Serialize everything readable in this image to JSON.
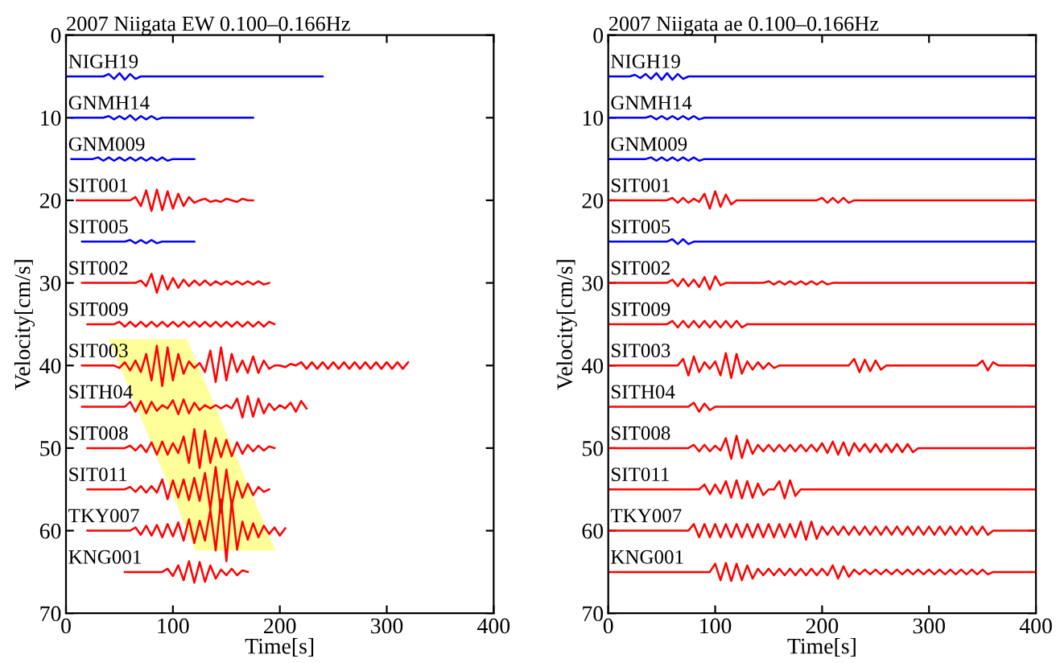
{
  "chart_data": [
    {
      "type": "line",
      "title": "2007 Niigata EW 0.100–0.166Hz",
      "xlabel": "Time[s]",
      "ylabel": "Velocity[cm/s]",
      "xlim": [
        0,
        400
      ],
      "xticks": [
        0,
        100,
        200,
        300,
        400
      ],
      "ylim": [
        70,
        0
      ],
      "yticks": [
        0,
        10,
        20,
        30,
        40,
        50,
        60,
        70
      ],
      "grid": false,
      "legend": false,
      "x": [
        0,
        5,
        10,
        15,
        20,
        25,
        30,
        35,
        40,
        45,
        50,
        55,
        60,
        65,
        70,
        75,
        80,
        85,
        90,
        95,
        100,
        105,
        110,
        115,
        120,
        125,
        130,
        135,
        140,
        145,
        150,
        155,
        160,
        165,
        170,
        175,
        180,
        185,
        190,
        195,
        200,
        205,
        210,
        215,
        220,
        225,
        230,
        235,
        240,
        245,
        250,
        255,
        260,
        265,
        270,
        275,
        280,
        285,
        290,
        295,
        300,
        305,
        310,
        315,
        320
      ],
      "series": [
        {
          "type": "area",
          "color": "#ffff80",
          "x": [
            40,
            113,
            196,
            121
          ],
          "values": [
            36.8,
            36.8,
            62.4,
            62.4
          ]
        },
        {
          "name": "NIGH19",
          "color": "#0000ff",
          "values": [
            5,
            5,
            5,
            5,
            5,
            5,
            5,
            5,
            4.7,
            5.3,
            4.6,
            5.4,
            4.7,
            5.3,
            5,
            5,
            5,
            5,
            5,
            5,
            5,
            5,
            5,
            5,
            5,
            5,
            5,
            5,
            5,
            5,
            5,
            5,
            5,
            5,
            5,
            5,
            5,
            5,
            5,
            5,
            5,
            5,
            5,
            5,
            5,
            5,
            5,
            5,
            5,
            null,
            null,
            null,
            null,
            null,
            null,
            null,
            null,
            null,
            null,
            null,
            null,
            null,
            null,
            null,
            null
          ]
        },
        {
          "name": "GNMH14",
          "color": "#0000ff",
          "values": [
            null,
            10,
            10,
            10,
            10,
            10,
            10,
            10,
            9.8,
            10.2,
            9.8,
            10.2,
            9.7,
            10.3,
            9.8,
            10.2,
            9.8,
            10.2,
            10,
            10,
            10,
            10,
            10,
            10,
            10,
            10,
            10,
            10,
            10,
            10,
            10,
            10,
            10,
            10,
            10,
            10,
            null,
            null,
            null,
            null,
            null,
            null,
            null,
            null,
            null,
            null,
            null,
            null,
            null,
            null,
            null,
            null,
            null,
            null,
            null,
            null,
            null,
            null,
            null,
            null,
            null,
            null,
            null,
            null,
            null
          ]
        },
        {
          "name": "GNM009",
          "color": "#0000ff",
          "values": [
            null,
            15,
            15,
            15,
            15,
            15,
            14.8,
            15.2,
            14.8,
            15.2,
            14.8,
            15.2,
            14.8,
            15.2,
            14.8,
            15.2,
            14.8,
            15.2,
            14.8,
            15.2,
            15,
            15,
            15,
            15,
            15,
            null,
            null,
            null,
            null,
            null,
            null,
            null,
            null,
            null,
            null,
            null,
            null,
            null,
            null,
            null,
            null,
            null,
            null,
            null,
            null,
            null,
            null,
            null,
            null,
            null,
            null,
            null,
            null,
            null,
            null,
            null,
            null,
            null,
            null,
            null,
            null,
            null,
            null,
            null,
            null
          ]
        },
        {
          "name": "SIT001",
          "color": "#ff0000",
          "values": [
            null,
            null,
            20,
            20,
            20,
            20,
            20,
            20,
            20,
            20,
            20,
            20,
            20,
            19.6,
            20.7,
            18.8,
            21.3,
            18.7,
            21.2,
            18.9,
            21,
            19.2,
            20.7,
            19.6,
            20.3,
            20,
            19.8,
            20.2,
            20,
            20.2,
            19.8,
            20,
            20.2,
            19.8,
            20,
            20,
            null,
            null,
            null,
            null,
            null,
            null,
            null,
            null,
            null,
            null,
            null,
            null,
            null,
            null,
            null,
            null,
            null,
            null,
            null,
            null,
            null,
            null,
            null,
            null,
            null,
            null,
            null,
            null,
            null
          ]
        },
        {
          "name": "SIT005",
          "color": "#0000ff",
          "values": [
            null,
            null,
            null,
            25,
            25,
            25,
            25,
            25,
            25,
            25,
            25,
            25,
            24.8,
            25.2,
            24.8,
            25.2,
            24.8,
            25.2,
            25,
            25,
            25,
            25,
            25,
            25,
            25,
            null,
            null,
            null,
            null,
            null,
            null,
            null,
            null,
            null,
            null,
            null,
            null,
            null,
            null,
            null,
            null,
            null,
            null,
            null,
            null,
            null,
            null,
            null,
            null,
            null,
            null,
            null,
            null,
            null,
            null,
            null,
            null,
            null,
            null,
            null,
            null,
            null,
            null,
            null,
            null
          ]
        },
        {
          "name": "SIT002",
          "color": "#ff0000",
          "values": [
            null,
            null,
            null,
            30,
            30,
            30,
            30,
            30,
            30,
            30,
            30,
            30,
            30,
            30,
            29.7,
            30.4,
            28.9,
            31.2,
            29.1,
            30.8,
            29.4,
            30.6,
            29.6,
            30.4,
            29.7,
            30.3,
            29.7,
            30.3,
            29.8,
            30.2,
            29.8,
            30.2,
            29.8,
            30.2,
            29.8,
            30.2,
            29.8,
            30.2,
            30,
            null,
            null,
            null,
            null,
            null,
            null,
            null,
            null,
            null,
            null,
            null,
            null,
            null,
            null,
            null,
            null,
            null,
            null,
            null,
            null,
            null,
            null,
            null,
            null,
            null,
            null
          ]
        },
        {
          "name": "SIT009",
          "color": "#ff0000",
          "values": [
            null,
            null,
            null,
            null,
            35,
            35,
            35,
            35,
            35,
            35,
            34.7,
            35.3,
            34.7,
            35.3,
            34.7,
            35.3,
            34.7,
            35.3,
            34.7,
            35.3,
            34.7,
            35.3,
            34.7,
            35.3,
            34.7,
            35.3,
            34.7,
            35.3,
            34.7,
            35.3,
            34.7,
            35.3,
            34.7,
            35.3,
            34.7,
            35.3,
            34.7,
            35.3,
            34.7,
            35,
            null,
            null,
            null,
            null,
            null,
            null,
            null,
            null,
            null,
            null,
            null,
            null,
            null,
            null,
            null,
            null,
            null,
            null,
            null,
            null,
            null,
            null,
            null,
            null,
            null
          ]
        },
        {
          "name": "SIT003",
          "color": "#ff0000",
          "values": [
            null,
            null,
            null,
            40,
            40,
            40,
            40,
            40,
            40,
            40,
            40.3,
            39.6,
            40.6,
            39.4,
            40.8,
            38.6,
            41.8,
            37.6,
            42.5,
            37.8,
            41.8,
            38.6,
            41,
            39.5,
            40.3,
            39.7,
            40.8,
            38.2,
            42,
            37.8,
            41.8,
            38.6,
            40.8,
            39.4,
            40.9,
            38.9,
            40.9,
            39.4,
            40.4,
            40,
            40,
            40.2,
            39.8,
            40,
            39.6,
            40.4,
            39.6,
            40.4,
            39.6,
            40.4,
            39.6,
            40.4,
            39.6,
            40.4,
            39.6,
            40.4,
            39.6,
            40.4,
            39.6,
            40.4,
            39.6,
            40.4,
            39.6,
            40.4,
            39.6
          ]
        },
        {
          "name": "SITH04",
          "color": "#ff0000",
          "values": [
            null,
            null,
            null,
            45,
            45,
            45,
            45,
            45,
            45,
            45,
            45,
            45,
            44.4,
            45.6,
            44.3,
            45.8,
            44.4,
            45.5,
            44.8,
            45.2,
            44.2,
            45.9,
            44.1,
            45.8,
            44.5,
            45.4,
            44.8,
            45.2,
            44.8,
            45.2,
            44.8,
            45.2,
            44,
            46.3,
            43.7,
            46.2,
            44,
            45.8,
            44.6,
            45.4,
            44.8,
            45.2,
            44.5,
            45.6,
            44.3,
            45.2,
            null,
            null,
            null,
            null,
            null,
            null,
            null,
            null,
            null,
            null,
            null,
            null,
            null,
            null,
            null,
            null,
            null,
            null,
            null
          ]
        },
        {
          "name": "SIT008",
          "color": "#ff0000",
          "values": [
            null,
            null,
            null,
            null,
            50,
            50,
            50,
            50,
            50,
            50,
            50,
            50,
            49.7,
            50.3,
            49.6,
            50.5,
            49.3,
            50.8,
            49.2,
            50.8,
            49.4,
            50.6,
            48.6,
            51.8,
            47.7,
            52.4,
            47.9,
            51.8,
            48.8,
            51.1,
            49,
            51,
            49.3,
            50.7,
            49.6,
            50.4,
            49.7,
            50.3,
            49.8,
            50,
            null,
            null,
            null,
            null,
            null,
            null,
            null,
            null,
            null,
            null,
            null,
            null,
            null,
            null,
            null,
            null,
            null,
            null,
            null,
            null,
            null,
            null,
            null,
            null,
            null
          ]
        },
        {
          "name": "SIT011",
          "color": "#ff0000",
          "values": [
            null,
            null,
            null,
            null,
            55,
            55,
            55,
            55,
            55,
            55,
            55,
            55,
            54.7,
            55.3,
            54.6,
            55.4,
            54.6,
            55.4,
            53.8,
            56.2,
            53.9,
            56,
            53.8,
            56.3,
            53.6,
            56.4,
            53,
            57.4,
            52.3,
            57.8,
            52.6,
            57,
            54,
            56,
            54.3,
            55.7,
            54.7,
            55.3,
            55,
            null,
            null,
            null,
            null,
            null,
            null,
            null,
            null,
            null,
            null,
            null,
            null,
            null,
            null,
            null,
            null,
            null,
            null,
            null,
            null,
            null,
            null,
            null,
            null,
            null,
            null
          ]
        },
        {
          "name": "TKY007",
          "color": "#ff0000",
          "values": [
            null,
            null,
            null,
            null,
            60,
            60,
            60,
            60,
            60,
            60,
            60,
            60,
            60,
            59.6,
            60.5,
            59.4,
            60.6,
            59.3,
            60.8,
            59.2,
            60.7,
            59,
            61.2,
            58.6,
            61.5,
            58.8,
            61.2,
            57.5,
            62.4,
            56.2,
            63.7,
            56.4,
            62.3,
            58.9,
            61.1,
            59.1,
            60.8,
            59.4,
            60.4,
            59.6,
            60.6,
            59.7,
            null,
            null,
            null,
            null,
            null,
            null,
            null,
            null,
            null,
            null,
            null,
            null,
            null,
            null,
            null,
            null,
            null,
            null,
            null,
            null,
            null,
            null,
            null
          ]
        },
        {
          "name": "KNG001",
          "color": "#ff0000",
          "values": [
            null,
            null,
            null,
            null,
            null,
            null,
            null,
            null,
            null,
            null,
            null,
            65,
            65,
            65,
            65,
            65,
            65,
            65,
            65,
            64.6,
            65.5,
            64.2,
            66,
            63.7,
            66.3,
            63.8,
            66.2,
            64.2,
            65.8,
            64.7,
            65.4,
            64.6,
            65.4,
            64.8,
            65,
            null,
            null,
            null,
            null,
            null,
            null,
            null,
            null,
            null,
            null,
            null,
            null,
            null,
            null,
            null,
            null,
            null,
            null,
            null,
            null,
            null,
            null,
            null,
            null,
            null,
            null,
            null,
            null,
            null,
            null
          ]
        }
      ]
    },
    {
      "type": "line",
      "title": "2007 Niigata ae 0.100–0.166Hz",
      "xlabel": "Time[s]",
      "ylabel": "Velocity[cm/s]",
      "xlim": [
        0,
        400
      ],
      "xticks": [
        0,
        100,
        200,
        300,
        400
      ],
      "ylim": [
        70,
        0
      ],
      "yticks": [
        0,
        10,
        20,
        30,
        40,
        50,
        60,
        70
      ],
      "grid": false,
      "legend": false,
      "x": [
        0,
        5,
        10,
        15,
        20,
        25,
        30,
        35,
        40,
        45,
        50,
        55,
        60,
        65,
        70,
        75,
        80,
        85,
        90,
        95,
        100,
        105,
        110,
        115,
        120,
        125,
        130,
        135,
        140,
        145,
        150,
        155,
        160,
        165,
        170,
        175,
        180,
        185,
        190,
        195,
        200,
        205,
        210,
        215,
        220,
        225,
        230,
        235,
        240,
        245,
        250,
        255,
        260,
        265,
        270,
        275,
        280,
        285,
        290,
        295,
        300,
        305,
        310,
        315,
        320,
        325,
        330,
        335,
        340,
        345,
        350,
        355,
        360,
        365,
        370,
        375,
        380,
        385,
        390,
        395,
        400
      ],
      "series": [
        {
          "name": "NIGH19",
          "color": "#0000ff",
          "values": [
            5,
            5,
            5,
            5,
            5,
            4.8,
            5.2,
            4.7,
            5.3,
            4.6,
            5.4,
            4.6,
            5.4,
            4.7,
            5.3,
            5,
            5,
            5,
            5,
            5,
            5,
            5,
            5,
            5,
            5,
            5,
            5,
            5,
            5,
            5,
            5,
            5,
            5,
            5,
            5,
            5,
            5,
            5,
            5,
            5,
            5,
            5,
            5,
            5,
            5,
            5,
            5,
            5,
            5,
            5,
            5,
            5,
            5,
            5,
            5,
            5,
            5,
            5,
            5,
            5,
            5,
            5,
            5,
            5,
            5,
            5,
            5,
            5,
            5,
            5,
            5,
            5,
            5,
            5,
            5,
            5,
            5,
            5,
            5,
            5,
            5
          ]
        },
        {
          "name": "GNMH14",
          "color": "#0000ff",
          "values": [
            10,
            10,
            10,
            10,
            10,
            10,
            10,
            10,
            9.8,
            10.2,
            9.8,
            10.2,
            9.8,
            10.2,
            9.8,
            10.2,
            9.8,
            10.2,
            10,
            10,
            10,
            10,
            10,
            10,
            10,
            10,
            10,
            10,
            10,
            10,
            10,
            10,
            10,
            10,
            10,
            10,
            10,
            10,
            10,
            10,
            10,
            10,
            10,
            10,
            10,
            10,
            10,
            10,
            10,
            10,
            10,
            10,
            10,
            10,
            10,
            10,
            10,
            10,
            10,
            10,
            10,
            10,
            10,
            10,
            10,
            10,
            10,
            10,
            10,
            10,
            10,
            10,
            10,
            10,
            10,
            10,
            10,
            10,
            10,
            10,
            10
          ]
        },
        {
          "name": "GNM009",
          "color": "#0000ff",
          "values": [
            15,
            15,
            15,
            15,
            15,
            15,
            15,
            15,
            14.8,
            15.2,
            14.8,
            15.2,
            14.8,
            15.2,
            14.8,
            15.2,
            14.8,
            15.2,
            15,
            15,
            15,
            15,
            15,
            15,
            15,
            15,
            15,
            15,
            15,
            15,
            15,
            15,
            15,
            15,
            15,
            15,
            15,
            15,
            15,
            15,
            15,
            15,
            15,
            15,
            15,
            15,
            15,
            15,
            15,
            15,
            15,
            15,
            15,
            15,
            15,
            15,
            15,
            15,
            15,
            15,
            15,
            15,
            15,
            15,
            15,
            15,
            15,
            15,
            15,
            15,
            15,
            15,
            15,
            15,
            15,
            15,
            15,
            15,
            15,
            15,
            15
          ]
        },
        {
          "name": "SIT001",
          "color": "#ff0000",
          "values": [
            20,
            20,
            20,
            20,
            20,
            20,
            20,
            20,
            20,
            20,
            20,
            20,
            19.7,
            20.3,
            19.7,
            20.3,
            19.8,
            20.2,
            19.2,
            21,
            18.9,
            20.8,
            19.3,
            20.5,
            20,
            20,
            20,
            20,
            20,
            20,
            20,
            20,
            20,
            20,
            20,
            20,
            20,
            20,
            20,
            20,
            19.7,
            20.3,
            19.7,
            20.3,
            19.7,
            20.3,
            20,
            20,
            20,
            20,
            20,
            20,
            20,
            20,
            20,
            20,
            20,
            20,
            20,
            20,
            20,
            20,
            20,
            20,
            20,
            20,
            20,
            20,
            20,
            20,
            20,
            20,
            20,
            20,
            20,
            20,
            20,
            20,
            20,
            20,
            20
          ]
        },
        {
          "name": "SIT005",
          "color": "#0000ff",
          "values": [
            25,
            25,
            25,
            25,
            25,
            25,
            25,
            25,
            25,
            25,
            25,
            25,
            24.7,
            25.3,
            24.7,
            25.3,
            25,
            25,
            25,
            25,
            25,
            25,
            25,
            25,
            25,
            25,
            25,
            25,
            25,
            25,
            25,
            25,
            25,
            25,
            25,
            25,
            25,
            25,
            25,
            25,
            25,
            25,
            25,
            25,
            25,
            25,
            25,
            25,
            25,
            25,
            25,
            25,
            25,
            25,
            25,
            25,
            25,
            25,
            25,
            25,
            25,
            25,
            25,
            25,
            25,
            25,
            25,
            25,
            25,
            25,
            25,
            25,
            25,
            25,
            25,
            25,
            25,
            25,
            25,
            25,
            25
          ]
        },
        {
          "name": "SIT002",
          "color": "#ff0000",
          "values": [
            30,
            30,
            30,
            30,
            30,
            30,
            30,
            30,
            30,
            30,
            30,
            30,
            29.6,
            30.4,
            29.5,
            30.4,
            29.6,
            30.5,
            29.3,
            30.8,
            29.2,
            30.3,
            30,
            30,
            30,
            30,
            30,
            30,
            30,
            30,
            29.8,
            30.2,
            29.8,
            30.2,
            29.8,
            30.2,
            29.8,
            30.2,
            29.8,
            30.2,
            29.8,
            30.2,
            30,
            30,
            30,
            30,
            30,
            30,
            30,
            30,
            30,
            30,
            30,
            30,
            30,
            30,
            30,
            30,
            30,
            30,
            30,
            30,
            30,
            30,
            30,
            30,
            30,
            30,
            30,
            30,
            30,
            30,
            30,
            30,
            30,
            30,
            30,
            30,
            30,
            30,
            30
          ]
        },
        {
          "name": "SIT009",
          "color": "#ff0000",
          "values": [
            35,
            35,
            35,
            35,
            35,
            35,
            35,
            35,
            35,
            35,
            35,
            35,
            34.6,
            35.4,
            34.6,
            35.4,
            34.6,
            35.4,
            34.6,
            35.4,
            34.6,
            35.4,
            34.6,
            35.4,
            34.6,
            35.4,
            35,
            35,
            35,
            35,
            35,
            35,
            35,
            35,
            35,
            35,
            35,
            35,
            35,
            35,
            35,
            35,
            35,
            35,
            35,
            35,
            35,
            35,
            35,
            35,
            35,
            35,
            35,
            35,
            35,
            35,
            35,
            35,
            35,
            35,
            35,
            35,
            35,
            35,
            35,
            35,
            35,
            35,
            35,
            35,
            35,
            35,
            35,
            35,
            35,
            35,
            35,
            35,
            35,
            35,
            35
          ]
        },
        {
          "name": "SIT003",
          "color": "#ff0000",
          "values": [
            40,
            40,
            40,
            40,
            40,
            40,
            40,
            40,
            40,
            40,
            40,
            40,
            40,
            40,
            39.2,
            41.2,
            38.9,
            40.8,
            39.6,
            40.4,
            39.5,
            41.2,
            38.5,
            41.5,
            38.6,
            41,
            39.5,
            40.5,
            39.6,
            40.4,
            39.7,
            40.3,
            40,
            40,
            40,
            40,
            40,
            40,
            40,
            40,
            40,
            40,
            40,
            40,
            40,
            40,
            39.2,
            40.8,
            39.3,
            40.7,
            39.4,
            40.5,
            40,
            40,
            40,
            40,
            40,
            40,
            40,
            40,
            40,
            40,
            40,
            40,
            40,
            40,
            40,
            40,
            40,
            40,
            39.4,
            40.6,
            39.6,
            40,
            40,
            40,
            40,
            40,
            40,
            40,
            40
          ]
        },
        {
          "name": "SITH04",
          "color": "#ff0000",
          "values": [
            45,
            45,
            45,
            45,
            45,
            45,
            45,
            45,
            45,
            45,
            45,
            45,
            45,
            45,
            45,
            45,
            44.5,
            45.6,
            44.6,
            45.4,
            45,
            45,
            45,
            45,
            45,
            45,
            45,
            45,
            45,
            45,
            45,
            45,
            45,
            45,
            45,
            45,
            45,
            45,
            45,
            45,
            45,
            45,
            45,
            45,
            45,
            45,
            45,
            45,
            45,
            45,
            45,
            45,
            45,
            45,
            45,
            45,
            45,
            45,
            45,
            45,
            45,
            45,
            45,
            45,
            45,
            45,
            45,
            45,
            45,
            45,
            45,
            45,
            45,
            45,
            45,
            45,
            45,
            45,
            45,
            45,
            45
          ]
        },
        {
          "name": "SIT008",
          "color": "#ff0000",
          "values": [
            50,
            50,
            50,
            50,
            50,
            50,
            50,
            50,
            50,
            50,
            50,
            50,
            50,
            50,
            50,
            50,
            49.6,
            50.4,
            49.6,
            50.4,
            49.7,
            50.3,
            48.8,
            51.3,
            48.5,
            51.2,
            49,
            50.7,
            49.6,
            50.4,
            49.6,
            50.4,
            49.6,
            50.4,
            49.6,
            50.4,
            49.6,
            50.4,
            49.6,
            50.4,
            49.4,
            50.6,
            49.2,
            50.8,
            49.3,
            50.9,
            49.4,
            50.4,
            49.5,
            50.5,
            49.5,
            50.5,
            49.5,
            50.5,
            49.5,
            50.5,
            49.5,
            50.5,
            50,
            50,
            50,
            50,
            50,
            50,
            50,
            50,
            50,
            50,
            50,
            50,
            50,
            50,
            50,
            50,
            50,
            50,
            50,
            50,
            50,
            50,
            50
          ]
        },
        {
          "name": "SIT011",
          "color": "#ff0000",
          "values": [
            55,
            55,
            55,
            55,
            55,
            55,
            55,
            55,
            55,
            55,
            55,
            55,
            55,
            55,
            55,
            55,
            55,
            55,
            54.4,
            55.6,
            54.4,
            55.5,
            54,
            56,
            53.9,
            56.1,
            54,
            56,
            54.3,
            55.7,
            55,
            55,
            54,
            56.1,
            53.9,
            55.8,
            55,
            55,
            55,
            55,
            55,
            55,
            55,
            55,
            55,
            55,
            55,
            55,
            55,
            55,
            55,
            55,
            55,
            55,
            55,
            55,
            55,
            55,
            55,
            55,
            55,
            55,
            55,
            55,
            55,
            55,
            55,
            55,
            55,
            55,
            55,
            55,
            55,
            55,
            55,
            55,
            55,
            55,
            55,
            55,
            55
          ]
        },
        {
          "name": "TKY007",
          "color": "#ff0000",
          "values": [
            60,
            60,
            60,
            60,
            60,
            60,
            60,
            60,
            60,
            60,
            60,
            60,
            60,
            60,
            60,
            60,
            59.2,
            60.8,
            59.2,
            60.8,
            59.2,
            60.8,
            59.2,
            60.8,
            59.2,
            60.8,
            59.2,
            60.8,
            59.2,
            60.8,
            59.2,
            60.8,
            59.2,
            60.8,
            59.2,
            60.8,
            58.9,
            61.1,
            58.9,
            61,
            59.5,
            60.5,
            59.5,
            60.5,
            59.5,
            60.5,
            59.5,
            60.5,
            59.5,
            60.5,
            59.5,
            60.5,
            59.5,
            60.5,
            59.5,
            60.5,
            59.5,
            60.5,
            59.5,
            60.5,
            59.5,
            60.5,
            59.5,
            60.5,
            59.5,
            60.5,
            59.5,
            60.5,
            59.5,
            60.5,
            59.5,
            60.5,
            60,
            60,
            60,
            60,
            60,
            60,
            60,
            60,
            60
          ]
        },
        {
          "name": "KNG001",
          "color": "#ff0000",
          "values": [
            65,
            65,
            65,
            65,
            65,
            65,
            65,
            65,
            65,
            65,
            65,
            65,
            65,
            65,
            65,
            65,
            65,
            65,
            65,
            65,
            64,
            66,
            63.9,
            66.1,
            64,
            66,
            64.2,
            65.8,
            64.6,
            65.4,
            64.6,
            65.4,
            64.6,
            65.4,
            64.6,
            65.4,
            64.6,
            65.4,
            64.6,
            65.4,
            64.6,
            65.4,
            64.2,
            65.8,
            64.3,
            65.6,
            64.7,
            65.3,
            64.7,
            65.3,
            64.7,
            65.3,
            64.7,
            65.3,
            64.7,
            65.3,
            64.7,
            65.3,
            64.7,
            65.3,
            64.7,
            65.3,
            64.7,
            65.3,
            64.7,
            65.3,
            64.7,
            65.3,
            64.7,
            65.3,
            64.7,
            65.3,
            65,
            65,
            65,
            65,
            65,
            65,
            65,
            65,
            65
          ]
        }
      ]
    }
  ]
}
